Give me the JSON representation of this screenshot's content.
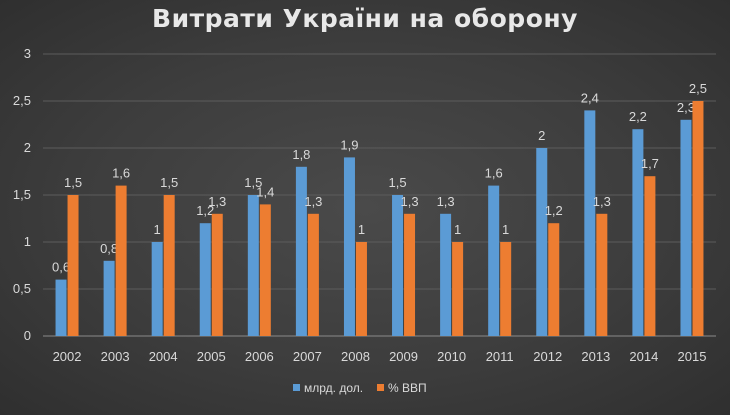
{
  "chart_data": {
    "type": "bar",
    "title": "Витрати України на оборону",
    "categories": [
      "2002",
      "2003",
      "2004",
      "2005",
      "2006",
      "2007",
      "2008",
      "2009",
      "2010",
      "2011",
      "2012",
      "2013",
      "2014",
      "2015"
    ],
    "series": [
      {
        "name": "млрд. дол.",
        "color": "#5b9bd5",
        "values": [
          0.6,
          0.8,
          1,
          1.2,
          1.5,
          1.8,
          1.9,
          1.5,
          1.3,
          1.6,
          2,
          2.4,
          2.2,
          2.3
        ],
        "labels": [
          "0,6",
          "0,8",
          "1",
          "1,2",
          "1,5",
          "1,8",
          "1,9",
          "1,5",
          "1,3",
          "1,6",
          "2",
          "2,4",
          "2,2",
          "2,3"
        ]
      },
      {
        "name": "% ВВП",
        "color": "#ed7d31",
        "values": [
          1.5,
          1.6,
          1.5,
          1.3,
          1.4,
          1.3,
          1,
          1.3,
          1,
          1,
          1.2,
          1.3,
          1.7,
          2.5
        ],
        "labels": [
          "1,5",
          "1,6",
          "1,5",
          "1,3",
          "1,4",
          "1,3",
          "1",
          "1,3",
          "1",
          "1",
          "1,2",
          "1,3",
          "1,7",
          "2,5"
        ]
      }
    ],
    "ylim": [
      0,
      3
    ],
    "yticks": [
      0,
      0.5,
      1,
      1.5,
      2,
      2.5,
      3
    ],
    "ytick_labels": [
      "0",
      "0,5",
      "1",
      "1,5",
      "2",
      "2,5",
      "3"
    ],
    "grid": true,
    "legend_position": "bottom"
  }
}
